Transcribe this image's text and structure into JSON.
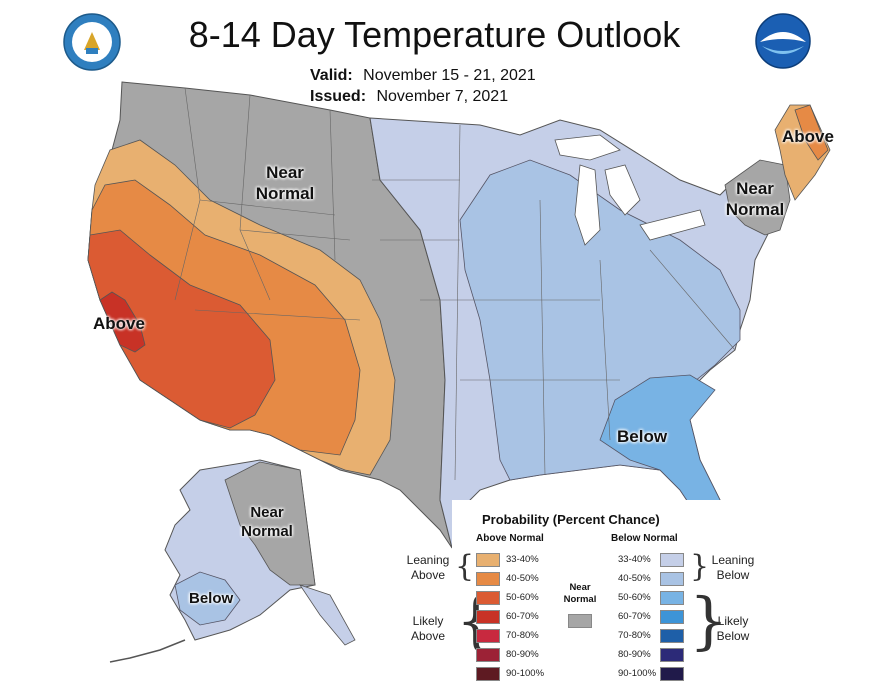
{
  "header": {
    "title": "8-14 Day Temperature Outlook",
    "valid_label": "Valid:",
    "valid_value": "November 15 - 21, 2021",
    "issued_label": "Issued:",
    "issued_value": "November 7, 2021"
  },
  "logos": {
    "left": "dept-of-commerce-seal",
    "right": "noaa-logo"
  },
  "regions": {
    "west_near_normal": "Near Normal",
    "west_above": "Above",
    "ne_above": "Above",
    "ne_near_normal": "Near Normal",
    "se_below": "Below",
    "ak_near_normal": "Near Normal",
    "ak_below": "Below"
  },
  "legend": {
    "title": "Probability (Percent Chance)",
    "above_header": "Above Normal",
    "below_header": "Below Normal",
    "near_label": "Near Normal",
    "leaning_label": "Leaning",
    "above_word": "Above",
    "below_word": "Below",
    "likely_label": "Likely",
    "above_rows": [
      {
        "pct": "33-40%",
        "color": "#e8b070"
      },
      {
        "pct": "40-50%",
        "color": "#e68a45"
      },
      {
        "pct": "50-60%",
        "color": "#db5b33"
      },
      {
        "pct": "60-70%",
        "color": "#c83226"
      },
      {
        "pct": "70-80%",
        "color": "#c8293f"
      },
      {
        "pct": "80-90%",
        "color": "#9c2236"
      },
      {
        "pct": "90-100%",
        "color": "#5e1a22"
      }
    ],
    "below_rows": [
      {
        "pct": "33-40%",
        "color": "#c5cfe8"
      },
      {
        "pct": "40-50%",
        "color": "#a9c3e4"
      },
      {
        "pct": "50-60%",
        "color": "#78b3e4"
      },
      {
        "pct": "60-70%",
        "color": "#3d94d7"
      },
      {
        "pct": "70-80%",
        "color": "#1e5fa8"
      },
      {
        "pct": "80-90%",
        "color": "#2c2a78"
      },
      {
        "pct": "90-100%",
        "color": "#201a4a"
      }
    ],
    "near_color": "#a6a6a6"
  },
  "colors": {
    "near_normal": "#a6a6a6",
    "leaning_above": "#e8b070",
    "above_40_50": "#e68a45",
    "above_50_60": "#db5b33",
    "above_60_70": "#c83226",
    "leaning_below": "#c5cfe8",
    "below_40_50": "#a9c3e4",
    "below_50_60": "#78b3e4"
  }
}
